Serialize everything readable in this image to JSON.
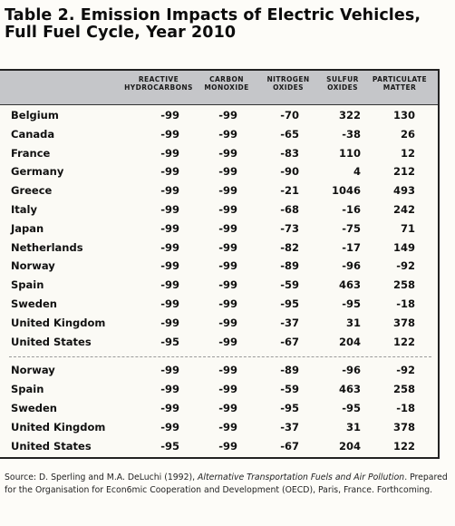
{
  "title": "Table 2. Emission Impacts of Electric Vehicles, Full Fuel Cycle, Year 2010",
  "columns": [
    "REACTIVE HYDROCARBONS",
    "CARBON MONOXIDE",
    "NITROGEN OXIDES",
    "SULFUR OXIDES",
    "PARTICULATE MATTER"
  ],
  "rows": [
    [
      "Belgium",
      "-99",
      "-99",
      "-70",
      "322",
      "130"
    ],
    [
      "Canada",
      "-99",
      "-99",
      "-65",
      "-38",
      "26"
    ],
    [
      "France",
      "-99",
      "-99",
      "-83",
      "110",
      "12"
    ],
    [
      "Germany",
      "-99",
      "-99",
      "-90",
      "4",
      "212"
    ],
    [
      "Greece",
      "-99",
      "-99",
      "-21",
      "1046",
      "493"
    ],
    [
      "Italy",
      "-99",
      "-99",
      "-68",
      "-16",
      "242"
    ],
    [
      "Japan",
      "-99",
      "-99",
      "-73",
      "-75",
      "71"
    ],
    [
      "Netherlands",
      "-99",
      "-99",
      "-82",
      "-17",
      "149"
    ],
    [
      "Norway",
      "-99",
      "-99",
      "-89",
      "-96",
      "-92"
    ],
    [
      "Spain",
      "-99",
      "-99",
      "-59",
      "463",
      "258"
    ],
    [
      "Sweden",
      "-99",
      "-99",
      "-95",
      "-95",
      "-18"
    ],
    [
      "United Kingdom",
      "-99",
      "-99",
      "-37",
      "31",
      "378"
    ],
    [
      "United States",
      "-95",
      "-99",
      "-67",
      "204",
      "122"
    ],
    [
      "Norway",
      "-99",
      "-99",
      "-89",
      "-96",
      "-92"
    ],
    [
      "Spain",
      "-99",
      "-99",
      "-59",
      "463",
      "258"
    ],
    [
      "Sweden",
      "-99",
      "-99",
      "-95",
      "-95",
      "-18"
    ],
    [
      "United Kingdom",
      "-99",
      "-99",
      "-37",
      "31",
      "378"
    ],
    [
      "United States",
      "-95",
      "-99",
      "-67",
      "204",
      "122"
    ]
  ],
  "source": {
    "prefix": "Source: D. Sperling and M.A. DeLuchi (1992), ",
    "book": "Alternative Transportation Fuels and Air Pollution",
    "suffix": ". Prepared for the Organisation for Econ6mic Cooperation and Development (OECD), Paris, France. Forthcoming."
  }
}
